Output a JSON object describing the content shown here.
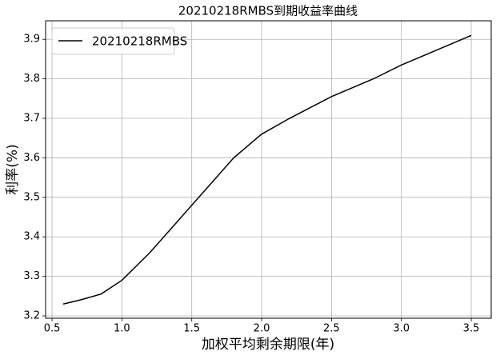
{
  "chart_data": {
    "type": "line",
    "title": "20210218RMBS到期收益率曲线",
    "x_label": "加权平均剩余期限(年)",
    "y_label": "利率(%)",
    "x": [
      0.58,
      0.7,
      0.85,
      1.0,
      1.2,
      1.4,
      1.6,
      1.8,
      2.0,
      2.2,
      2.5,
      2.8,
      3.0,
      3.2,
      3.5
    ],
    "series": [
      {
        "name": "20210218RMBS",
        "color": "#000000",
        "values": [
          3.23,
          3.24,
          3.255,
          3.29,
          3.36,
          3.44,
          3.52,
          3.6,
          3.66,
          3.7,
          3.755,
          3.8,
          3.835,
          3.865,
          3.91
        ]
      }
    ],
    "xlim": [
      0.454,
      3.643
    ],
    "ylim": [
      3.194,
      3.947
    ],
    "xticks": [
      0.5,
      {
        "value": 1.0,
        "label": "1.0"
      },
      1.5,
      {
        "value": 2.0,
        "label": "2.0"
      },
      2.5,
      {
        "value": 3.0,
        "label": "3.0"
      },
      3.5
    ],
    "yticks": [
      3.2,
      3.3,
      3.4,
      3.5,
      3.6,
      3.7,
      3.8,
      3.9
    ],
    "grid": true,
    "legend": "upper left"
  }
}
